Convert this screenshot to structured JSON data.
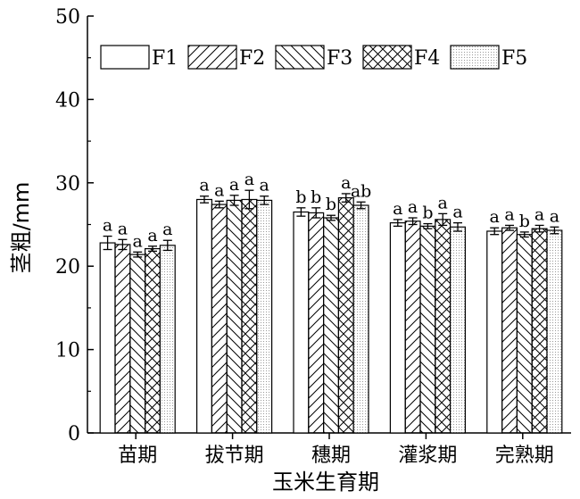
{
  "chart_data": {
    "type": "bar",
    "xlabel": "玉米生育期",
    "ylabel": "茎粗/mm",
    "ylim": [
      0,
      50
    ],
    "yticks": [
      0,
      10,
      20,
      30,
      40,
      50
    ],
    "grid": false,
    "legend_position": "top",
    "categories": [
      "苗期",
      "拔节期",
      "穗期",
      "灌浆期",
      "完熟期"
    ],
    "series": [
      {
        "name": "F1",
        "pattern": "blank",
        "values": [
          22.8,
          28.0,
          26.5,
          25.2,
          24.2
        ],
        "errors": [
          0.8,
          0.4,
          0.5,
          0.4,
          0.4
        ],
        "labels": [
          "a",
          "a",
          "b",
          "a",
          "a"
        ]
      },
      {
        "name": "F2",
        "pattern": "forward-diagonal",
        "values": [
          22.6,
          27.4,
          26.4,
          25.4,
          24.6
        ],
        "errors": [
          0.6,
          0.4,
          0.6,
          0.4,
          0.3
        ],
        "labels": [
          "a",
          "a",
          "b",
          "a",
          "a"
        ]
      },
      {
        "name": "F3",
        "pattern": "backward-diagonal",
        "values": [
          21.4,
          27.9,
          25.8,
          24.8,
          23.8
        ],
        "errors": [
          0.3,
          0.6,
          0.3,
          0.3,
          0.3
        ],
        "labels": [
          "a",
          "a",
          "b",
          "b",
          "b"
        ]
      },
      {
        "name": "F4",
        "pattern": "crosshatch",
        "values": [
          22.1,
          28.0,
          28.2,
          25.6,
          24.5
        ],
        "errors": [
          0.3,
          1.1,
          0.5,
          0.7,
          0.4
        ],
        "labels": [
          "a",
          "a",
          "a",
          "a",
          "a"
        ]
      },
      {
        "name": "F5",
        "pattern": "dotted",
        "values": [
          22.5,
          27.9,
          27.3,
          24.7,
          24.3
        ],
        "errors": [
          0.6,
          0.5,
          0.4,
          0.5,
          0.4
        ],
        "labels": [
          "a",
          "a",
          "ab",
          "a",
          "a"
        ]
      }
    ]
  }
}
